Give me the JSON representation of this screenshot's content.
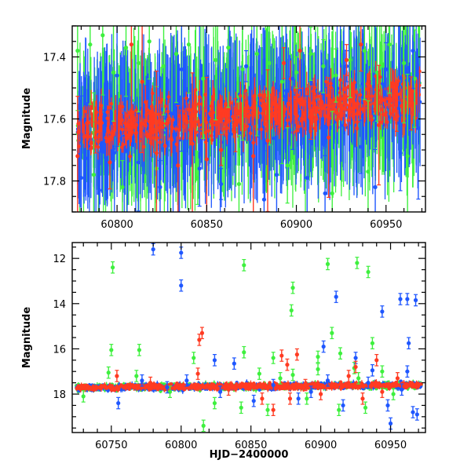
{
  "colors": {
    "red": "#ff3b22",
    "green": "#3ef03e",
    "blue": "#1f57ff",
    "frame": "#000000"
  },
  "chart_data": [
    {
      "type": "scatter",
      "title": "",
      "xlabel": "",
      "ylabel": "Magnitude",
      "xlim": [
        60775,
        60972
      ],
      "ylim": [
        17.9,
        17.3
      ],
      "y_inverted": true,
      "xticks": [
        60800,
        60850,
        60900,
        60950
      ],
      "xtick_labels": [
        "60800",
        "60850",
        "60900",
        "60950"
      ],
      "yticks": [
        17.4,
        17.6,
        17.8
      ],
      "ytick_labels": [
        "17.4",
        "17.6",
        "17.8"
      ],
      "series": [
        {
          "name": "green",
          "color": "#3ef03e",
          "points": [
            [
              60778,
              17.38
            ],
            [
              60785,
              17.36
            ],
            [
              60792,
              17.33
            ],
            [
              60798,
              17.45
            ],
            [
              60805,
              17.37
            ],
            [
              60812,
              17.42
            ],
            [
              60818,
              17.35
            ],
            [
              60826,
              17.43
            ],
            [
              60833,
              17.39
            ],
            [
              60840,
              17.36
            ],
            [
              60848,
              17.47
            ],
            [
              60855,
              17.41
            ],
            [
              60862,
              17.37
            ],
            [
              60870,
              17.44
            ],
            [
              60878,
              17.39
            ],
            [
              60885,
              17.42
            ],
            [
              60892,
              17.48
            ],
            [
              60900,
              17.45
            ],
            [
              60908,
              17.39
            ],
            [
              60915,
              17.43
            ],
            [
              60922,
              17.46
            ],
            [
              60930,
              17.41
            ],
            [
              60938,
              17.38
            ],
            [
              60945,
              17.45
            ],
            [
              60952,
              17.36
            ],
            [
              60960,
              17.42
            ],
            [
              60966,
              17.47
            ],
            [
              60787,
              17.78
            ],
            [
              60803,
              17.82
            ],
            [
              60822,
              17.76
            ],
            [
              60845,
              17.79
            ],
            [
              60868,
              17.81
            ],
            [
              60895,
              17.75
            ],
            [
              60920,
              17.84
            ],
            [
              60940,
              17.77
            ],
            [
              60962,
              17.72
            ]
          ]
        },
        {
          "name": "blue",
          "color": "#1f57ff",
          "points": [
            [
              60780,
              17.79
            ],
            [
              60790,
              17.83
            ],
            [
              60800,
              17.46
            ],
            [
              60812,
              17.74
            ],
            [
              60824,
              17.82
            ],
            [
              60836,
              17.44
            ],
            [
              60846,
              17.76
            ],
            [
              60858,
              17.81
            ],
            [
              60872,
              17.43
            ],
            [
              60882,
              17.86
            ],
            [
              60889,
              17.78
            ],
            [
              60898,
              17.47
            ],
            [
              60906,
              17.79
            ],
            [
              60916,
              17.84
            ],
            [
              60928,
              17.43
            ],
            [
              60936,
              17.69
            ],
            [
              60944,
              17.82
            ],
            [
              60950,
              17.44
            ],
            [
              60958,
              17.71
            ],
            [
              60965,
              17.38
            ],
            [
              60968,
              17.63
            ]
          ]
        },
        {
          "name": "red",
          "color": "#ff3b22",
          "points": [
            [
              60778,
              17.72
            ],
            [
              60788,
              17.66
            ],
            [
              60796,
              17.74
            ],
            [
              60808,
              17.36
            ],
            [
              60814,
              17.48
            ],
            [
              60822,
              17.71
            ],
            [
              60834,
              17.75
            ],
            [
              60842,
              17.68
            ],
            [
              60850,
              17.73
            ],
            [
              60858,
              17.7
            ],
            [
              60866,
              17.62
            ],
            [
              60876,
              17.72
            ],
            [
              60884,
              17.67
            ],
            [
              60893,
              17.42
            ],
            [
              60902,
              17.38
            ],
            [
              60908,
              17.58
            ],
            [
              60918,
              17.66
            ],
            [
              60928,
              17.41
            ],
            [
              60936,
              17.36
            ],
            [
              60946,
              17.62
            ],
            [
              60956,
              17.59
            ],
            [
              60964,
              17.55
            ]
          ]
        }
      ]
    },
    {
      "type": "scatter",
      "title": "",
      "xlabel": "HJD−2400000",
      "ylabel": "Magnitude",
      "xlim": [
        60722,
        60975
      ],
      "ylim": [
        19.7,
        11.3
      ],
      "y_inverted": true,
      "xticks": [
        60750,
        60800,
        60850,
        60900,
        60950
      ],
      "xtick_labels": [
        "60750",
        "60800",
        "60850",
        "60900",
        "60950"
      ],
      "yticks": [
        12,
        14,
        16,
        18
      ],
      "ytick_labels": [
        "12",
        "14",
        "16",
        "18"
      ],
      "series": [
        {
          "name": "green",
          "color": "#3ef03e",
          "points": [
            [
              60751,
              12.4
            ],
            [
              60845,
              12.3
            ],
            [
              60880,
              13.3
            ],
            [
              60879,
              14.3
            ],
            [
              60905,
              12.25
            ],
            [
              60926,
              12.2
            ],
            [
              60934,
              12.6
            ],
            [
              60750,
              16.05
            ],
            [
              60770,
              16.05
            ],
            [
              60809,
              16.4
            ],
            [
              60845,
              16.15
            ],
            [
              60866,
              16.4
            ],
            [
              60908,
              15.3
            ],
            [
              60937,
              15.75
            ],
            [
              60944,
              17.0
            ],
            [
              60914,
              16.2
            ],
            [
              60898,
              16.35
            ],
            [
              60924,
              16.85
            ],
            [
              60730,
              18.1
            ],
            [
              60748,
              17.05
            ],
            [
              60768,
              17.2
            ],
            [
              60792,
              17.9
            ],
            [
              60824,
              18.4
            ],
            [
              60843,
              18.6
            ],
            [
              60856,
              17.1
            ],
            [
              60871,
              17.3
            ],
            [
              60880,
              17.15
            ],
            [
              60898,
              16.9
            ],
            [
              60913,
              18.7
            ],
            [
              60927,
              17.3
            ],
            [
              60932,
              18.6
            ],
            [
              60952,
              18.0
            ],
            [
              60816,
              19.4
            ],
            [
              60862,
              18.7
            ],
            [
              60890,
              18.2
            ]
          ]
        },
        {
          "name": "blue",
          "color": "#1f57ff",
          "points": [
            [
              60780,
              11.6
            ],
            [
              60800,
              11.75
            ],
            [
              60800,
              13.2
            ],
            [
              60911,
              13.7
            ],
            [
              60944,
              14.35
            ],
            [
              60957,
              13.8
            ],
            [
              60962,
              13.8
            ],
            [
              60968,
              13.85
            ],
            [
              60824,
              16.5
            ],
            [
              60838,
              16.65
            ],
            [
              60902,
              15.9
            ],
            [
              60925,
              16.4
            ],
            [
              60963,
              15.75
            ],
            [
              60937,
              16.95
            ],
            [
              60962,
              17.0
            ],
            [
              60755,
              18.4
            ],
            [
              60772,
              17.4
            ],
            [
              60790,
              17.7
            ],
            [
              60804,
              17.4
            ],
            [
              60828,
              17.9
            ],
            [
              60852,
              18.3
            ],
            [
              60866,
              17.6
            ],
            [
              60884,
              18.2
            ],
            [
              60893,
              17.9
            ],
            [
              60905,
              17.4
            ],
            [
              60916,
              18.5
            ],
            [
              60934,
              17.5
            ],
            [
              60948,
              18.5
            ],
            [
              60958,
              17.8
            ],
            [
              60966,
              18.8
            ],
            [
              60969,
              18.9
            ],
            [
              60950,
              19.3
            ]
          ]
        },
        {
          "name": "red",
          "color": "#ff3b22",
          "points": [
            [
              60813,
              15.6
            ],
            [
              60815,
              15.3
            ],
            [
              60872,
              16.3
            ],
            [
              60876,
              16.7
            ],
            [
              60883,
              16.25
            ],
            [
              60925,
              16.8
            ],
            [
              60940,
              16.5
            ],
            [
              60754,
              17.2
            ],
            [
              60778,
              17.5
            ],
            [
              60812,
              17.1
            ],
            [
              60834,
              17.8
            ],
            [
              60858,
              18.2
            ],
            [
              60866,
              18.7
            ],
            [
              60878,
              18.2
            ],
            [
              60889,
              17.6
            ],
            [
              60900,
              18.0
            ],
            [
              60920,
              17.2
            ],
            [
              60930,
              18.2
            ],
            [
              60944,
              17.9
            ],
            [
              60955,
              17.3
            ]
          ]
        }
      ]
    }
  ]
}
